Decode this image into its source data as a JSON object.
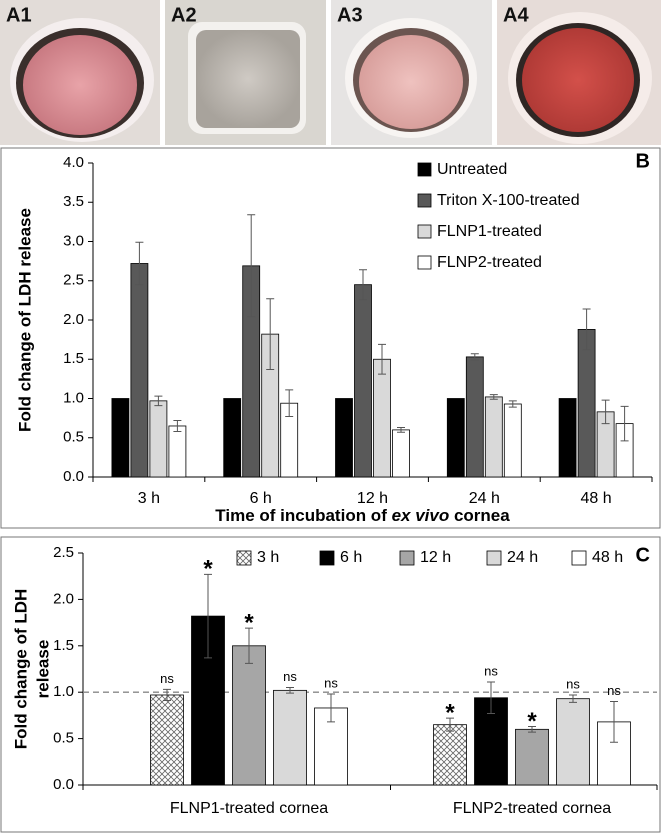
{
  "photo_labels": [
    "A1",
    "A2",
    "A3",
    "A4"
  ],
  "chart_data": [
    {
      "type": "bar",
      "panel_label": "B",
      "y_label": "Fold change of LDH release",
      "x_label": [
        "Time of incubation of ",
        "ex vivo",
        " cornea"
      ],
      "categories": [
        "3 h",
        "6 h",
        "12 h",
        "24 h",
        "48 h"
      ],
      "series": [
        {
          "name": "Untreated",
          "color": "#000000",
          "values": [
            1,
            1,
            1,
            1,
            1
          ]
        },
        {
          "name": "Triton X-100-treated",
          "color": "#595959",
          "values": [
            2.72,
            2.69,
            2.45,
            1.53,
            1.88
          ],
          "errors": [
            0.27,
            0.65,
            0.19,
            0.04,
            0.26
          ]
        },
        {
          "name": "FLNP1-treated",
          "color": "#d9d9d9",
          "values": [
            0.97,
            1.82,
            1.5,
            1.02,
            0.83
          ],
          "errors": [
            0.06,
            0.45,
            0.19,
            0.03,
            0.15
          ]
        },
        {
          "name": "FLNP2-treated",
          "color": "#ffffff",
          "values": [
            0.65,
            0.94,
            0.6,
            0.93,
            0.68
          ],
          "errors": [
            0.07,
            0.17,
            0.03,
            0.04,
            0.22
          ]
        }
      ],
      "ylim": [
        0,
        4
      ],
      "yticks": [
        {
          "value": 0,
          "label": "0.0"
        },
        0.5,
        {
          "value": 1,
          "label": "1.0"
        },
        1.5,
        {
          "value": 2,
          "label": "2.0"
        },
        2.5,
        {
          "value": 3,
          "label": "3.0"
        },
        3.5,
        {
          "value": 4,
          "label": "4.0"
        }
      ]
    },
    {
      "type": "bar",
      "panel_label": "C",
      "y_label": [
        "Fold change of LDH",
        "release"
      ],
      "categories": [
        "FLNP1-treated cornea",
        "FLNP2-treated cornea"
      ],
      "series": [
        {
          "name": "3 h",
          "color": "#ffffff",
          "hatch": true,
          "values": [
            0.97,
            0.65
          ],
          "errors": [
            0.06,
            0.07
          ],
          "annotations": [
            "ns",
            "*"
          ]
        },
        {
          "name": "6 h",
          "color": "#000000",
          "values": [
            1.82,
            0.94
          ],
          "errors": [
            0.45,
            0.17
          ],
          "annotations": [
            "*",
            "ns"
          ]
        },
        {
          "name": "12 h",
          "color": "#a6a6a6",
          "values": [
            1.5,
            0.6
          ],
          "errors": [
            0.19,
            0.03
          ],
          "annotations": [
            "*",
            "*"
          ]
        },
        {
          "name": "24 h",
          "color": "#d9d9d9",
          "values": [
            1.02,
            0.93
          ],
          "errors": [
            0.03,
            0.04
          ],
          "annotations": [
            "ns",
            "ns"
          ]
        },
        {
          "name": "48 h",
          "color": "#ffffff",
          "values": [
            0.83,
            0.68
          ],
          "errors": [
            0.15,
            0.22
          ],
          "annotations": [
            "ns",
            "ns"
          ]
        }
      ],
      "reference_line": 1,
      "ylim": [
        0,
        2.5
      ],
      "yticks": [
        {
          "value": 0,
          "label": "0.0"
        },
        0.5,
        {
          "value": 1,
          "label": "1.0"
        },
        1.5,
        {
          "value": 2,
          "label": "2.0"
        },
        2.5
      ]
    }
  ]
}
